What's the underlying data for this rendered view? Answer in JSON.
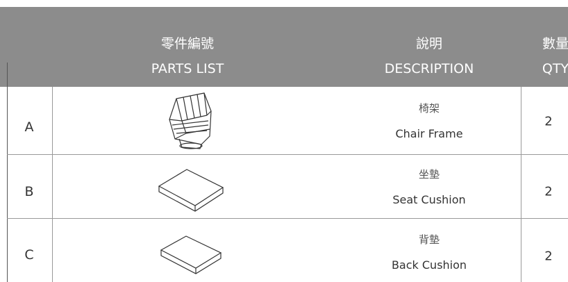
{
  "header": {
    "columns_zh": [
      "零件編號",
      "說明",
      "數量"
    ],
    "columns_en": [
      "PARTS LIST",
      "DESCRIPTION",
      "QTY"
    ]
  },
  "table": {
    "rows": [
      [
        "A",
        "椅架",
        "Chair Frame",
        2
      ],
      [
        "B",
        "坐墊",
        "Seat Cushion",
        2
      ],
      [
        "C",
        "背墊",
        "Back Cushion",
        2
      ]
    ]
  }
}
